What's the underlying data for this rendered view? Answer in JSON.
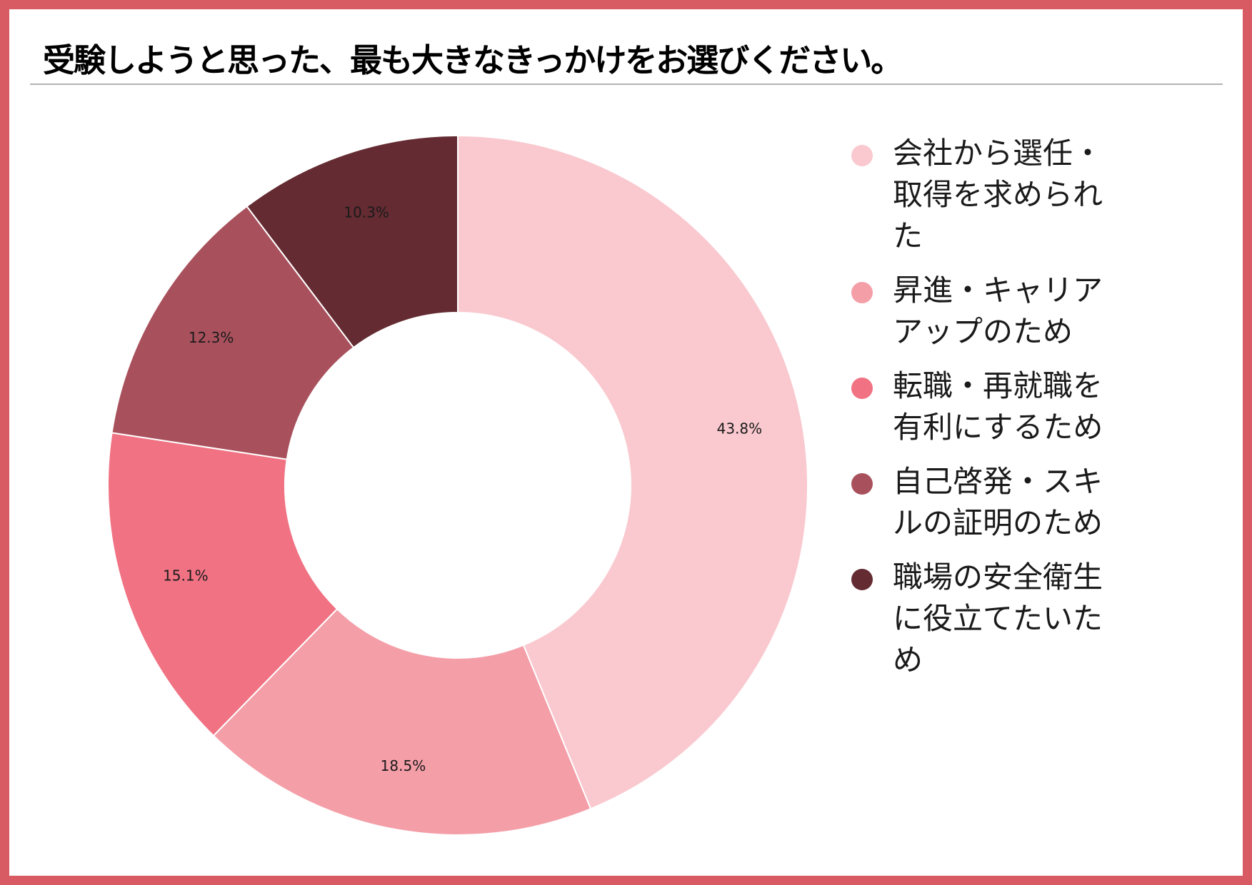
{
  "title": "受験しようと思った、最も大きなきっかけをお選びください。",
  "chart_data": {
    "type": "pie",
    "title": "受験しようと思った、最も大きなきっかけをお選びください。",
    "donut": true,
    "start_angle_deg": 0,
    "direction": "clockwise",
    "legend_position": "right",
    "unit": "%",
    "categories": [
      "会社から選任・取得を求められた",
      "昇進・キャリアアップのため",
      "転職・再就職を有利にするため",
      "自己啓発・スキルの証明のため",
      "職場の安全衛生に役立てたいため"
    ],
    "values": [
      43.8,
      18.5,
      15.1,
      12.3,
      10.3
    ],
    "value_labels": [
      "43.8%",
      "18.5%",
      "15.1%",
      "12.3%",
      "10.3%"
    ],
    "colors": [
      "#f9c9cf",
      "#f49ea8",
      "#f07283",
      "#a8515c",
      "#642b32"
    ]
  }
}
